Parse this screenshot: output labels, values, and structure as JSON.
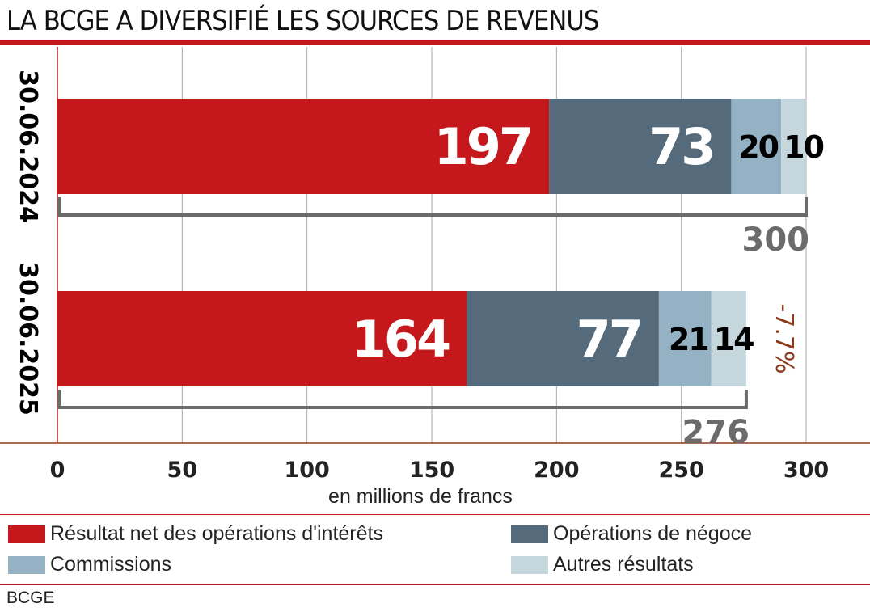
{
  "title": "LA BCGE A DIVERSIFIÉ LES SOURCES DE REVENUS",
  "source": "BCGE",
  "colors": {
    "accent": "#c4181c",
    "interets": "#c4181c",
    "negoce": "#556a7a",
    "commissions": "#95b1c4",
    "autres": "#c5d7dd",
    "total": "#6b6b6b",
    "change": "#8b3a1a"
  },
  "chart_data": {
    "type": "bar",
    "stacked": true,
    "orientation": "horizontal",
    "categories": [
      "30.06.2024",
      "30.06.2025"
    ],
    "series": [
      {
        "name": "Résultat net des opérations d'intérêts",
        "values": [
          197,
          164
        ]
      },
      {
        "name": "Opérations de négoce",
        "values": [
          73,
          77
        ]
      },
      {
        "name": "Commissions",
        "values": [
          20,
          21
        ]
      },
      {
        "name": "Autres résultats",
        "values": [
          10,
          14
        ]
      }
    ],
    "totals": [
      "300",
      "276"
    ],
    "change_label": "-7.7%",
    "xlabel": "en millions de francs",
    "xlim": [
      0,
      325
    ],
    "xticks": [
      "0",
      "50",
      "100",
      "150",
      "200",
      "250",
      "300"
    ],
    "grid": true,
    "legend": "bottom"
  }
}
